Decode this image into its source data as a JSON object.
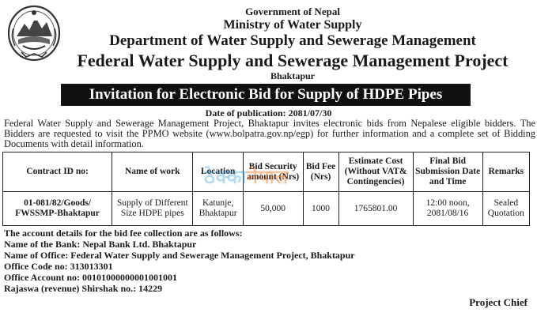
{
  "header": {
    "government": "Government of Nepal",
    "ministry": "Ministry of Water Supply",
    "department": "Department of Water Supply and Sewerage Management",
    "project": "Federal Water Supply and Sewerage Management Project",
    "location": "Bhaktapur"
  },
  "emblem_icon": "nepal-government-emblem",
  "banner": {
    "title": "Invitation for Electronic Bid for Supply of HDPE Pipes"
  },
  "publication": {
    "date_line": "Date of publication: 2081/07/30"
  },
  "intro": {
    "paragraph": "Federal Water Supply and Sewerage Management Project, Bhaktapur invites electronic bids from Nepalese eligible bidders. The Bidders are requested to visit the PPMO website (www.bolpatra.gov.np/egp) for further information and a complete set of Bidding Documents with detail information."
  },
  "table": {
    "headers": {
      "contract_id": "Contract ID no:",
      "work": "Name of work",
      "location": "Location",
      "security": "Bid Security amount (Nrs)",
      "fee": "Bid Fee (Nrs)",
      "estimate": "Estimate Cost (Without VAT& Contingencies)",
      "final": "Final Bid Submission Date and Time",
      "remarks": "Remarks"
    },
    "row": {
      "contract_id_1": "01-081/82/Goods/",
      "contract_id_2": "FWSSMP-Bhaktapur",
      "work": "Supply of Different Size HDPE pipes",
      "location": "Katunje, Bhaktapur",
      "security": "50,000",
      "fee": "1000",
      "estimate": "1765801.00",
      "final_time": "12:00 noon,",
      "final_date": "2081/08/16",
      "remarks": "Sealed Quotation"
    }
  },
  "watermark": {
    "main": "ठेक्का",
    "suffix": "नेपाल"
  },
  "account": {
    "intro": "The account details for the bid fee collection are as follows:",
    "bank": "Name of the Bank: Nepal Bank Ltd. Bhaktapur",
    "office": "Name of Office: Federal Water Supply and Sewerage Management Project, Bhaktapur",
    "office_code": "Office Code no: 313013301",
    "office_account": "Office Account no: 00101000000001001001",
    "rajaswa": "Rajaswa (revenue) Shirshak no.: 14229"
  },
  "signature": {
    "title": "Project Chief"
  }
}
